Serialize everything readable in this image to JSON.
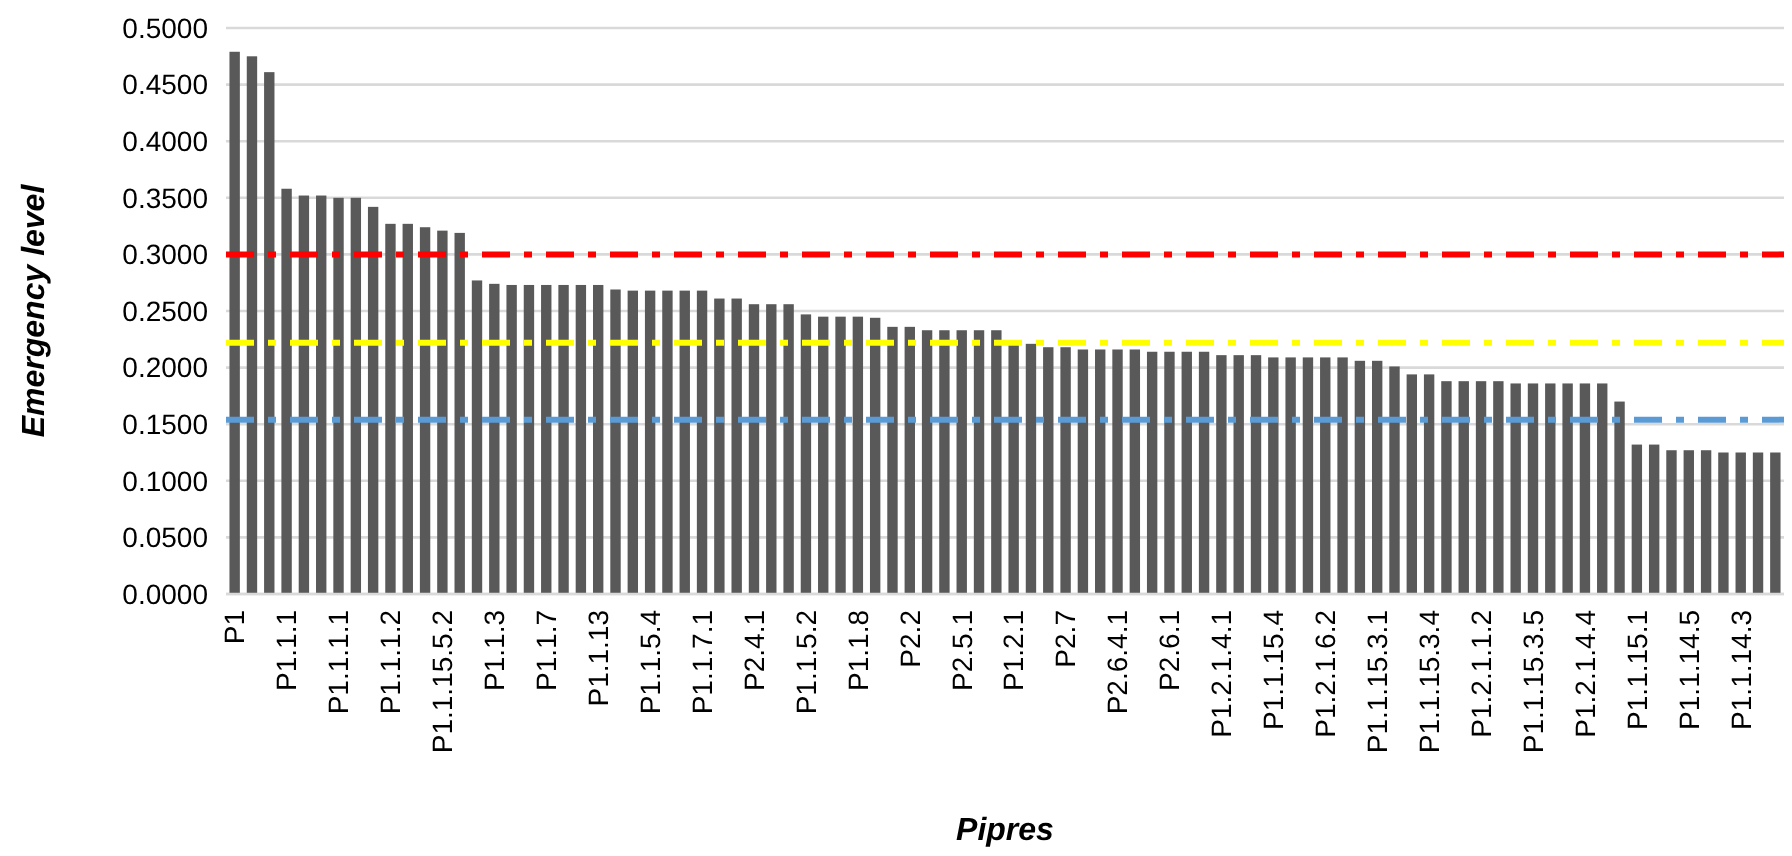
{
  "chart_data": {
    "type": "bar",
    "xlabel": "Pipres",
    "ylabel": "Emergency level",
    "categories": [
      "P1",
      null,
      null,
      "P1.1.1",
      null,
      null,
      "P1.1.1.1",
      null,
      null,
      "P1.1.1.2",
      null,
      null,
      "P1.1.15.5.2",
      null,
      null,
      "P1.1.3",
      null,
      null,
      "P1.1.7",
      null,
      null,
      "P1.1.13",
      null,
      null,
      "P1.1.5.4",
      null,
      null,
      "P1.1.7.1",
      null,
      null,
      "P2.4.1",
      null,
      null,
      "P1.1.5.2",
      null,
      null,
      "P1.1.8",
      null,
      null,
      "P2.2",
      null,
      null,
      "P2.5.1",
      null,
      null,
      "P1.2.1",
      null,
      null,
      "P2.7",
      null,
      null,
      "P2.6.4.1",
      null,
      null,
      "P2.6.1",
      null,
      null,
      "P1.2.1.4.1",
      null,
      null,
      "P1.1.15.4",
      null,
      null,
      "P1.2.1.6.2",
      null,
      null,
      "P1.1.15.3.1",
      null,
      null,
      "P1.1.15.3.4",
      null,
      null,
      "P1.2.1.1.2",
      null,
      null,
      "P1.1.15.3.5",
      null,
      null,
      "P1.2.1.4.4",
      null,
      null,
      "P1.1.15.1",
      null,
      null,
      "P1.1.14.5",
      null,
      null,
      "P1.1.14.3",
      null,
      null
    ],
    "values": [
      0.479,
      0.475,
      0.461,
      0.358,
      0.352,
      0.352,
      0.35,
      0.35,
      0.342,
      0.327,
      0.327,
      0.324,
      0.321,
      0.319,
      0.277,
      0.274,
      0.273,
      0.273,
      0.273,
      0.273,
      0.273,
      0.273,
      0.269,
      0.268,
      0.268,
      0.268,
      0.268,
      0.268,
      0.261,
      0.261,
      0.256,
      0.256,
      0.256,
      0.247,
      0.245,
      0.245,
      0.245,
      0.244,
      0.236,
      0.236,
      0.233,
      0.233,
      0.233,
      0.233,
      0.233,
      0.224,
      0.221,
      0.218,
      0.218,
      0.216,
      0.216,
      0.216,
      0.216,
      0.214,
      0.214,
      0.214,
      0.214,
      0.211,
      0.211,
      0.211,
      0.209,
      0.209,
      0.209,
      0.209,
      0.209,
      0.206,
      0.206,
      0.201,
      0.194,
      0.194,
      0.188,
      0.188,
      0.188,
      0.188,
      0.186,
      0.186,
      0.186,
      0.186,
      0.186,
      0.186,
      0.17,
      0.132,
      0.132,
      0.127,
      0.127,
      0.127,
      0.125,
      0.125,
      0.125,
      0.125
    ],
    "color": "#595959",
    "ylim": [
      0,
      0.5
    ],
    "yticks": [
      {
        "value": 0,
        "label": "0.0000"
      },
      {
        "value": 0.05,
        "label": "0.0500"
      },
      {
        "value": 0.1,
        "label": "0.1000"
      },
      {
        "value": 0.15,
        "label": "0.1500"
      },
      {
        "value": 0.2,
        "label": "0.2000"
      },
      {
        "value": 0.25,
        "label": "0.2500"
      },
      {
        "value": 0.3,
        "label": "0.3000"
      },
      {
        "value": 0.35,
        "label": "0.3500"
      },
      {
        "value": 0.4,
        "label": "0.4000"
      },
      {
        "value": 0.45,
        "label": "0.4500"
      },
      {
        "value": 0.5,
        "label": "0.5000"
      }
    ],
    "grid": "y",
    "ref_lines": [
      {
        "axis": "y",
        "value": 0.3,
        "color": "#ff0000",
        "line_style": "dashed"
      },
      {
        "axis": "y",
        "value": 0.222,
        "color": "#ffff00",
        "line_style": "dashed"
      },
      {
        "axis": "y",
        "value": 0.154,
        "color": "#5b9bd5",
        "line_style": "dashed"
      }
    ]
  }
}
